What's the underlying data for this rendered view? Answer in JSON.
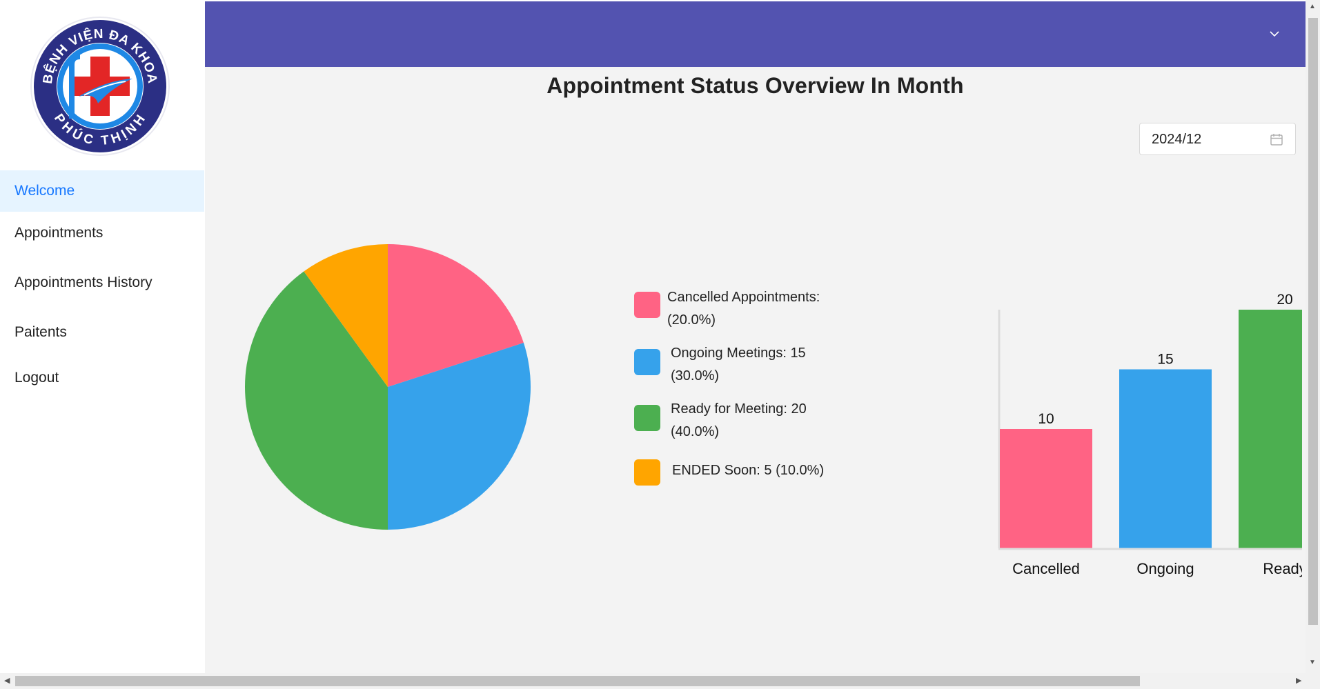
{
  "logo": {
    "top_text": "BỆNH VIỆN ĐA KHOA",
    "bottom_text": "PHÚC THỊNH",
    "colors": {
      "ring": "#2b2f84",
      "cross": "#e32626",
      "accent": "#1e88e5"
    }
  },
  "sidebar": {
    "items": [
      {
        "label": "Welcome",
        "active": true
      },
      {
        "label": "Appointments",
        "active": false
      },
      {
        "label": "Appointments History",
        "active": false
      },
      {
        "label": "Paitents",
        "active": false
      },
      {
        "label": "Logout",
        "active": false
      }
    ]
  },
  "header": {
    "icon": "chevron-down-icon",
    "color": "#5353b0"
  },
  "main": {
    "title": "Appointment Status Overview In Month",
    "date_picker": {
      "value": "2024/12",
      "icon": "calendar-icon"
    },
    "legend": [
      {
        "text": "Cancelled Appointments:",
        "text2": "(20.0%)",
        "color": "#ff6384"
      },
      {
        "text": "Ongoing Meetings: 15",
        "text2": "(30.0%)",
        "color": "#36a2eb"
      },
      {
        "text": "Ready for Meeting: 20",
        "text2": "(40.0%)",
        "color": "#4caf50"
      },
      {
        "text": "ENDED Soon: 5 (10.0%)",
        "text2": "",
        "color": "#ffa500"
      }
    ]
  },
  "chart_data": [
    {
      "type": "pie",
      "categories": [
        "Cancelled Appointments",
        "Ongoing Meetings",
        "Ready for Meeting",
        "ENDED Soon"
      ],
      "values": [
        10,
        15,
        20,
        5
      ],
      "percentages": [
        20.0,
        30.0,
        40.0,
        10.0
      ],
      "colors": [
        "#ff6384",
        "#36a2eb",
        "#4caf50",
        "#ffa500"
      ]
    },
    {
      "type": "bar",
      "categories": [
        "Cancelled",
        "Ongoing",
        "Ready"
      ],
      "values": [
        10,
        15,
        20
      ],
      "colors": [
        "#ff6384",
        "#36a2eb",
        "#4caf50"
      ],
      "ylim": [
        0,
        20
      ],
      "data_labels": true
    }
  ]
}
